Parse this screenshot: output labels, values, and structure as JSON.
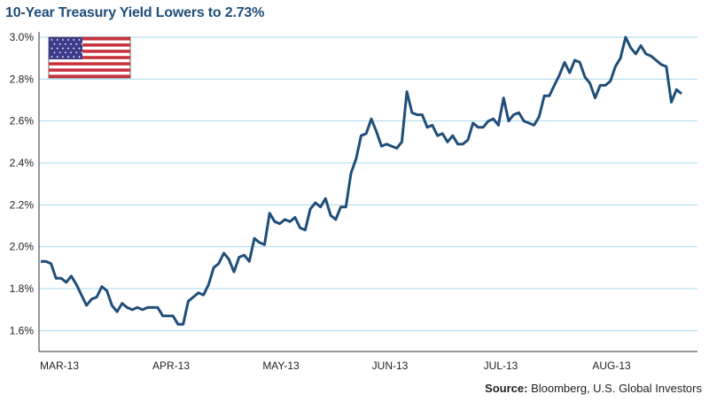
{
  "chart_data": {
    "type": "line",
    "title": "10-Year Treasury Yield Lowers to 2.73%",
    "source_label": "Source:",
    "source_text": "Bloomberg, U.S. Global Investors",
    "xlabel": "",
    "ylabel": "",
    "ylim": [
      1.5,
      3.0
    ],
    "y_ticks": [
      "3.0%",
      "2.8%",
      "2.6%",
      "2.4%",
      "2.2%",
      "2.0%",
      "1.8%",
      "1.6%"
    ],
    "y_tick_values": [
      3.0,
      2.8,
      2.6,
      2.4,
      2.2,
      2.0,
      1.8,
      1.6
    ],
    "x_ticks": [
      "MAR-13",
      "APR-13",
      "MAY-13",
      "JUN-13",
      "JUL-13",
      "AUG-13"
    ],
    "grid": true,
    "line_color": "#1f4e79",
    "grid_color": "#a9d8ee",
    "flag_icon": "us-flag-icon",
    "series": [
      {
        "name": "",
        "values": [
          1.93,
          1.93,
          1.92,
          1.85,
          1.85,
          1.83,
          1.86,
          1.82,
          1.77,
          1.72,
          1.75,
          1.76,
          1.81,
          1.79,
          1.72,
          1.69,
          1.73,
          1.71,
          1.7,
          1.71,
          1.7,
          1.71,
          1.71,
          1.71,
          1.67,
          1.67,
          1.67,
          1.63,
          1.63,
          1.74,
          1.76,
          1.78,
          1.77,
          1.82,
          1.9,
          1.92,
          1.97,
          1.94,
          1.88,
          1.95,
          1.96,
          1.93,
          2.04,
          2.02,
          2.01,
          2.16,
          2.12,
          2.11,
          2.13,
          2.12,
          2.14,
          2.09,
          2.08,
          2.18,
          2.21,
          2.19,
          2.23,
          2.15,
          2.13,
          2.19,
          2.19,
          2.35,
          2.42,
          2.53,
          2.54,
          2.61,
          2.55,
          2.48,
          2.49,
          2.48,
          2.47,
          2.5,
          2.74,
          2.64,
          2.63,
          2.63,
          2.57,
          2.58,
          2.53,
          2.54,
          2.5,
          2.53,
          2.49,
          2.49,
          2.51,
          2.59,
          2.57,
          2.57,
          2.6,
          2.61,
          2.58,
          2.71,
          2.6,
          2.63,
          2.64,
          2.6,
          2.59,
          2.58,
          2.62,
          2.72,
          2.72,
          2.77,
          2.82,
          2.88,
          2.83,
          2.89,
          2.88,
          2.81,
          2.78,
          2.71,
          2.77,
          2.77,
          2.79,
          2.86,
          2.9,
          3.0,
          2.95,
          2.92,
          2.96,
          2.92,
          2.91,
          2.89,
          2.87,
          2.86,
          2.69,
          2.75,
          2.73
        ]
      }
    ]
  }
}
